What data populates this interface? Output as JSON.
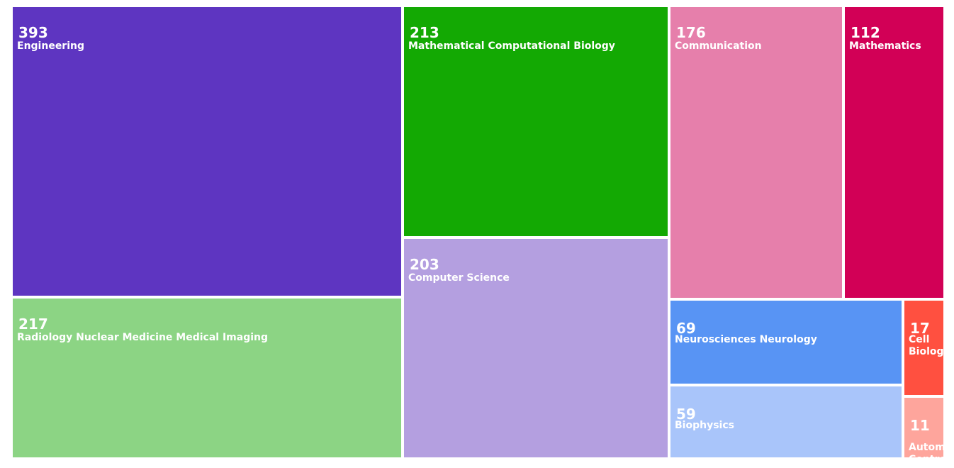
{
  "chart_data": {
    "type": "treemap",
    "title": "",
    "items": [
      {
        "label": "Engineering",
        "value": 393,
        "color": "#5e35c1"
      },
      {
        "label": "Radiology Nuclear Medicine Medical Imaging",
        "value": 217,
        "color": "#8cd484"
      },
      {
        "label": "Mathematical Computational Biology",
        "value": 213,
        "color": "#13a903"
      },
      {
        "label": "Computer Science",
        "value": 203,
        "color": "#b49fe0"
      },
      {
        "label": "Communication",
        "value": 176,
        "color": "#e67fab"
      },
      {
        "label": "Mathematics",
        "value": 112,
        "color": "#d20056"
      },
      {
        "label": "Neurosciences Neurology",
        "value": 69,
        "color": "#5894f4"
      },
      {
        "label": "Biophysics",
        "value": 59,
        "color": "#a9c5fa"
      },
      {
        "label": "Cell Biology",
        "value": 17,
        "color": "#ff5040"
      },
      {
        "label": "Automation Control Systems",
        "value": 11,
        "color": "#fea59c"
      }
    ]
  }
}
